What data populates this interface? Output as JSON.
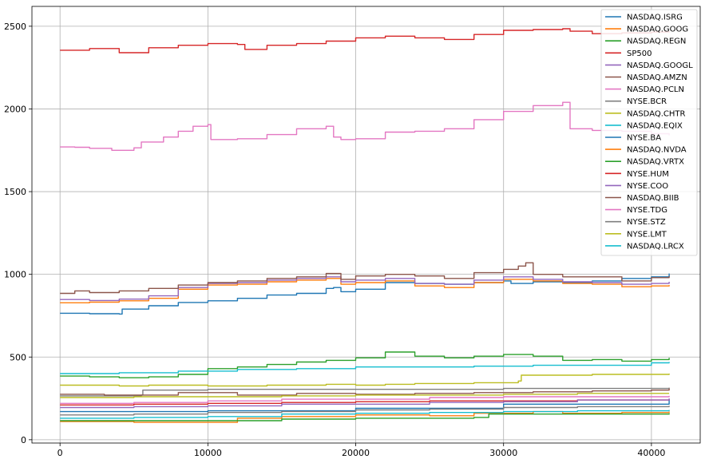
{
  "chart_data": {
    "type": "line",
    "title": "",
    "xlabel": "",
    "ylabel": "",
    "xlim": [
      -1900,
      43300
    ],
    "ylim": [
      -20,
      2620
    ],
    "x_ticks": [
      0,
      10000,
      20000,
      30000,
      40000
    ],
    "y_ticks": [
      0,
      500,
      1000,
      1500,
      2000,
      2500
    ],
    "grid": true,
    "legend_position": "top-right",
    "series": [
      {
        "name": "NASDAQ.ISRG",
        "color": "#1f77b4",
        "x": [
          0,
          2000,
          4000,
          4200,
          6000,
          8000,
          10000,
          12000,
          14000,
          16000,
          18000,
          18500,
          19000,
          20000,
          22000,
          24000,
          26000,
          28000,
          30000,
          30500,
          32000,
          34000,
          36000,
          38000,
          40000,
          41200
        ],
        "values": [
          765,
          762,
          760,
          790,
          810,
          830,
          840,
          855,
          875,
          885,
          915,
          920,
          895,
          910,
          950,
          945,
          940,
          950,
          960,
          945,
          955,
          950,
          960,
          975,
          985,
          1005
        ]
      },
      {
        "name": "NASDAQ.GOOG",
        "color": "#ff7f0e",
        "x": [
          0,
          2000,
          4000,
          6000,
          8000,
          10000,
          12000,
          14000,
          16000,
          18000,
          19000,
          20000,
          22000,
          24000,
          26000,
          28000,
          30000,
          32000,
          34000,
          36000,
          38000,
          40000,
          41200
        ],
        "values": [
          828,
          832,
          840,
          855,
          910,
          935,
          940,
          955,
          965,
          975,
          940,
          950,
          960,
          930,
          920,
          950,
          970,
          960,
          945,
          940,
          925,
          930,
          935
        ]
      },
      {
        "name": "NASDAQ.REGN",
        "color": "#2ca02c",
        "x": [
          0,
          2000,
          4000,
          6000,
          8000,
          10000,
          12000,
          14000,
          16000,
          18000,
          20000,
          22000,
          24000,
          26000,
          28000,
          30000,
          32000,
          34000,
          36000,
          38000,
          40000,
          41200
        ],
        "values": [
          385,
          380,
          375,
          380,
          395,
          430,
          440,
          455,
          470,
          480,
          495,
          530,
          505,
          495,
          505,
          515,
          505,
          480,
          485,
          475,
          485,
          495
        ]
      },
      {
        "name": "SP500",
        "color": "#d62728",
        "x": [
          0,
          2000,
          4000,
          6000,
          8000,
          10000,
          12000,
          12500,
          14000,
          16000,
          18000,
          20000,
          22000,
          24000,
          26000,
          28000,
          30000,
          32000,
          34000,
          34500,
          36000,
          38000,
          40000,
          41200
        ],
        "values": [
          2355,
          2365,
          2340,
          2370,
          2385,
          2395,
          2390,
          2360,
          2385,
          2395,
          2410,
          2430,
          2440,
          2430,
          2420,
          2450,
          2475,
          2480,
          2485,
          2470,
          2455,
          2460,
          2465,
          2470
        ]
      },
      {
        "name": "NASDAQ.GOOGL",
        "color": "#9467bd",
        "x": [
          0,
          2000,
          4000,
          6000,
          8000,
          10000,
          12000,
          14000,
          16000,
          18000,
          19000,
          20000,
          22000,
          24000,
          26000,
          28000,
          30000,
          32000,
          34000,
          36000,
          38000,
          40000,
          41200
        ],
        "values": [
          848,
          842,
          850,
          870,
          920,
          945,
          950,
          965,
          975,
          985,
          955,
          965,
          975,
          945,
          940,
          965,
          985,
          970,
          955,
          950,
          940,
          945,
          955
        ]
      },
      {
        "name": "NASDAQ.AMZN",
        "color": "#8c564b",
        "x": [
          0,
          1000,
          2000,
          4000,
          6000,
          8000,
          10000,
          12000,
          14000,
          16000,
          18000,
          19000,
          20000,
          22000,
          24000,
          26000,
          28000,
          30000,
          31000,
          31500,
          32000,
          34000,
          36000,
          38000,
          40000,
          41200
        ],
        "values": [
          885,
          900,
          890,
          900,
          915,
          935,
          950,
          960,
          975,
          985,
          1005,
          970,
          990,
          1000,
          990,
          975,
          1010,
          1030,
          1050,
          1070,
          1000,
          985,
          985,
          960,
          980,
          990
        ]
      },
      {
        "name": "NASDAQ.PCLN",
        "color": "#e377c2",
        "x": [
          0,
          1000,
          2000,
          3500,
          5000,
          5500,
          7000,
          8000,
          9000,
          10000,
          10200,
          12000,
          14000,
          16000,
          18000,
          18500,
          19000,
          20000,
          22000,
          24000,
          26000,
          28000,
          30000,
          32000,
          34000,
          34500,
          36000,
          38000,
          40000,
          41200
        ],
        "values": [
          1770,
          1768,
          1762,
          1750,
          1765,
          1800,
          1830,
          1865,
          1895,
          1905,
          1815,
          1820,
          1845,
          1880,
          1895,
          1830,
          1815,
          1820,
          1860,
          1865,
          1880,
          1935,
          1985,
          2020,
          2040,
          1880,
          1870,
          1865,
          1850,
          1840
        ]
      },
      {
        "name": "NYSE.BCR",
        "color": "#7f7f7f",
        "x": [
          0,
          5500,
          5600,
          10000,
          20000,
          30000,
          41200
        ],
        "values": [
          265,
          270,
          300,
          305,
          305,
          310,
          315
        ]
      },
      {
        "name": "NASDAQ.CHTR",
        "color": "#bcbd22",
        "x": [
          0,
          4000,
          6000,
          8000,
          10000,
          12000,
          14000,
          16000,
          18000,
          20000,
          22000,
          24000,
          26000,
          28000,
          30000,
          31000,
          31200,
          34000,
          36000,
          38000,
          40000,
          41200
        ],
        "values": [
          330,
          325,
          330,
          330,
          325,
          325,
          330,
          330,
          335,
          330,
          335,
          340,
          340,
          345,
          345,
          355,
          390,
          390,
          395,
          395,
          395,
          400
        ]
      },
      {
        "name": "NASDAQ.EQIX",
        "color": "#17becf",
        "x": [
          0,
          4000,
          8000,
          12000,
          16000,
          20000,
          24000,
          28000,
          32000,
          36000,
          40000,
          41200
        ],
        "values": [
          400,
          405,
          415,
          425,
          430,
          440,
          440,
          445,
          450,
          450,
          465,
          470
        ]
      },
      {
        "name": "NYSE.BA",
        "color": "#1f77b4",
        "x": [
          0,
          10000,
          20000,
          30000,
          41200
        ],
        "values": [
          170,
          175,
          190,
          215,
          245
        ]
      },
      {
        "name": "NASDAQ.NVDA",
        "color": "#ff7f0e",
        "x": [
          0,
          5000,
          10000,
          12000,
          15000,
          20000,
          25000,
          28000,
          30000,
          32000,
          34000,
          36000,
          38000,
          40000,
          41200
        ],
        "values": [
          110,
          105,
          105,
          130,
          140,
          150,
          145,
          160,
          160,
          170,
          160,
          160,
          165,
          165,
          170
        ]
      },
      {
        "name": "NASDAQ.VRTX",
        "color": "#2ca02c",
        "x": [
          0,
          5000,
          10000,
          15000,
          20000,
          25000,
          28000,
          29000,
          32000,
          36000,
          41200
        ],
        "values": [
          115,
          115,
          115,
          125,
          130,
          130,
          135,
          155,
          155,
          155,
          160
        ]
      },
      {
        "name": "NYSE.HUM",
        "color": "#d62728",
        "x": [
          0,
          5000,
          10000,
          15000,
          20000,
          25000,
          30000,
          35000,
          41200
        ],
        "values": [
          210,
          215,
          220,
          225,
          230,
          235,
          235,
          240,
          245
        ]
      },
      {
        "name": "NYSE.COO",
        "color": "#9467bd",
        "x": [
          0,
          5000,
          10000,
          15000,
          20000,
          25000,
          30000,
          35000,
          41200
        ],
        "values": [
          195,
          200,
          205,
          215,
          215,
          225,
          230,
          240,
          250
        ]
      },
      {
        "name": "NASDAQ.BIIB",
        "color": "#8c564b",
        "x": [
          0,
          3000,
          5000,
          8000,
          12000,
          16000,
          20000,
          24000,
          28000,
          32000,
          36000,
          40000,
          41200
        ],
        "values": [
          275,
          270,
          270,
          285,
          270,
          280,
          275,
          280,
          285,
          290,
          295,
          300,
          310
        ]
      },
      {
        "name": "NYSE.TDG",
        "color": "#e377c2",
        "x": [
          0,
          5000,
          10000,
          15000,
          20000,
          25000,
          30000,
          35000,
          41200
        ],
        "values": [
          220,
          225,
          235,
          245,
          245,
          255,
          260,
          260,
          265
        ]
      },
      {
        "name": "NYSE.STZ",
        "color": "#7f7f7f",
        "x": [
          0,
          5000,
          10000,
          15000,
          20000,
          25000,
          30000,
          35000,
          41200
        ],
        "values": [
          150,
          155,
          165,
          170,
          180,
          185,
          195,
          200,
          205
        ]
      },
      {
        "name": "NYSE.LMT",
        "color": "#bcbd22",
        "x": [
          0,
          5000,
          10000,
          15000,
          20000,
          25000,
          30000,
          35000,
          41200
        ],
        "values": [
          255,
          260,
          260,
          265,
          270,
          270,
          275,
          280,
          280
        ]
      },
      {
        "name": "NASDAQ.LRCX",
        "color": "#17becf",
        "x": [
          0,
          5000,
          10000,
          15000,
          20000,
          25000,
          30000,
          35000,
          41200
        ],
        "values": [
          130,
          135,
          140,
          155,
          160,
          165,
          170,
          175,
          180
        ]
      }
    ]
  }
}
